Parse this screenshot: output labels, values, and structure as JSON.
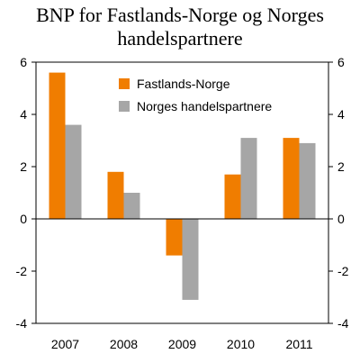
{
  "chart_data": {
    "type": "bar",
    "title_lines": [
      "BNP for Fastlands-Norge og Norges",
      "handelspartnere"
    ],
    "categories": [
      "2007",
      "2008",
      "2009",
      "2010",
      "2011"
    ],
    "series": [
      {
        "name": "Fastlands-Norge",
        "color": "#f07d00",
        "values": [
          5.6,
          1.8,
          -1.4,
          1.7,
          3.1
        ]
      },
      {
        "name": "Norges handelspartnere",
        "color": "#a6a6a6",
        "values": [
          3.6,
          1.0,
          -3.1,
          3.1,
          2.9
        ]
      }
    ],
    "ylim": [
      -4,
      6
    ],
    "yticks": [
      6,
      4,
      2,
      0,
      -2,
      -4
    ],
    "ytick_labels": [
      "6",
      "4",
      "2",
      "0",
      "-2",
      "-4"
    ],
    "legend_position": "top-center",
    "grid": false
  }
}
